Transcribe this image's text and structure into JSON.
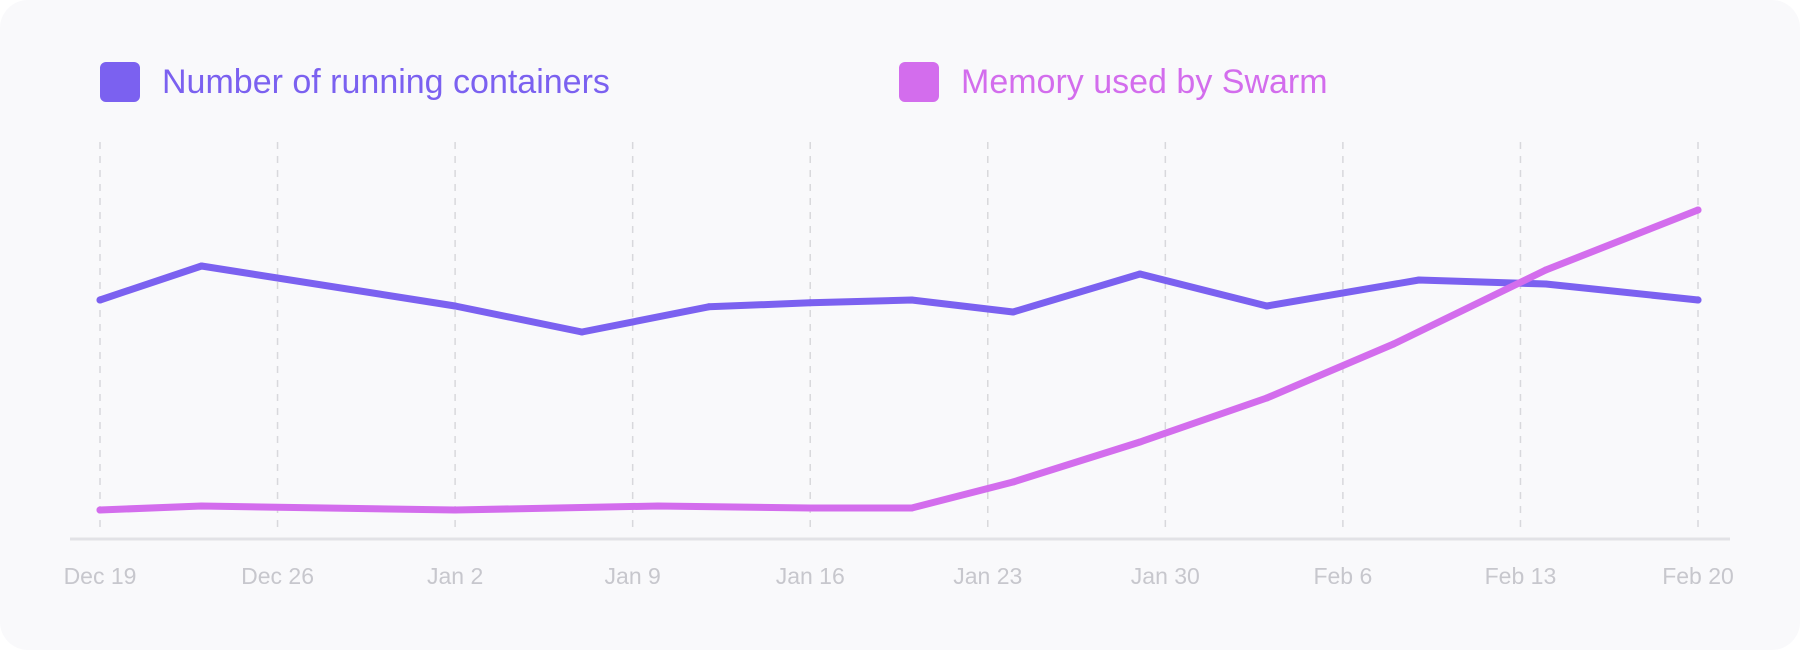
{
  "colors": {
    "background": "#f9f9fb",
    "series_1": "#7b61f0",
    "series_2": "#d36ded",
    "gridline": "#d8d8dc",
    "axis": "#e2e2e6",
    "tick_text": "#c7c7cd"
  },
  "chart_data": {
    "type": "line",
    "title": "",
    "xlabel": "",
    "ylabel": "",
    "grid": "vertical dashed",
    "legend_position": "top",
    "x_ticks": [
      "Dec 19",
      "Dec 26",
      "Jan 2",
      "Jan 9",
      "Jan 16",
      "Jan 23",
      "Jan 30",
      "Feb 6",
      "Feb 13",
      "Feb 20"
    ],
    "xlim": [
      "Dec 19",
      "Feb 20"
    ],
    "ylim": [
      0,
      100
    ],
    "series": [
      {
        "name": "Number of running containers",
        "color": "#7b61f0",
        "points": [
          {
            "x": "Dec 19",
            "y": 60
          },
          {
            "x": "Dec 23",
            "y": 68.5
          },
          {
            "x": "Jan 2",
            "y": 58.5
          },
          {
            "x": "Jan 7",
            "y": 52
          },
          {
            "x": "Jan 12",
            "y": 58.3
          },
          {
            "x": "Jan 16",
            "y": 59.3
          },
          {
            "x": "Jan 20",
            "y": 60
          },
          {
            "x": "Jan 24",
            "y": 57
          },
          {
            "x": "Jan 29",
            "y": 66.5
          },
          {
            "x": "Feb 3",
            "y": 58.5
          },
          {
            "x": "Feb 9",
            "y": 65
          },
          {
            "x": "Feb 14",
            "y": 64
          },
          {
            "x": "Feb 20",
            "y": 60
          }
        ]
      },
      {
        "name": "Memory used by Swarm",
        "color": "#d36ded",
        "points": [
          {
            "x": "Dec 19",
            "y": 7.5
          },
          {
            "x": "Dec 23",
            "y": 8.5
          },
          {
            "x": "Jan 2",
            "y": 7.5
          },
          {
            "x": "Jan 10",
            "y": 8.5
          },
          {
            "x": "Jan 16",
            "y": 8.0
          },
          {
            "x": "Jan 20",
            "y": 8.0
          },
          {
            "x": "Jan 24",
            "y": 14.5
          },
          {
            "x": "Jan 29",
            "y": 24.5
          },
          {
            "x": "Feb 3",
            "y": 35.5
          },
          {
            "x": "Feb 8",
            "y": 49
          },
          {
            "x": "Feb 14",
            "y": 67.5
          },
          {
            "x": "Feb 20",
            "y": 82.5
          }
        ]
      }
    ]
  }
}
